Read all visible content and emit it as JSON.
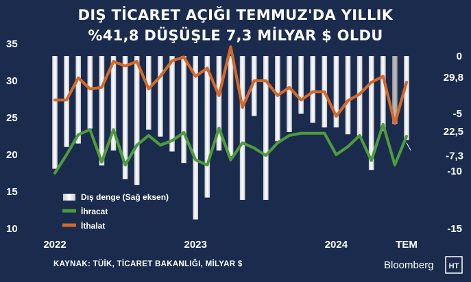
{
  "title_line1": "DIŞ TİCARET AÇIĞI TEMMUZ'DA YILLIK",
  "title_line2": "%41,8 DÜŞÜŞLE 7,3 MİLYAR $ OLDU",
  "source": "KAYNAK: TÜİK, TİCARET BAKANLIĞI, MİLYAR $",
  "brand": "Bloomberg",
  "brand_logo": "HT",
  "colors": {
    "background": "#1a2b4e",
    "bars": "#ffffff",
    "bars_shade": "#c9ccd3",
    "last_year_bar": "#b3b3b3",
    "exports": "#4f9a3e",
    "imports": "#d4692a"
  },
  "chart_data": {
    "type": "bar+line",
    "x": [
      "2022-01",
      "2022-02",
      "2022-03",
      "2022-04",
      "2022-05",
      "2022-06",
      "2022-07",
      "2022-08",
      "2022-09",
      "2022-10",
      "2022-11",
      "2022-12",
      "2023-01",
      "2023-02",
      "2023-03",
      "2023-04",
      "2023-05",
      "2023-06",
      "2023-07",
      "2023-08",
      "2023-09",
      "2023-10",
      "2023-11",
      "2023-12",
      "2024-01",
      "2024-02",
      "2024-03",
      "2024-04",
      "2024-05",
      "2024-06",
      "2024-07"
    ],
    "x_tick_labels": [
      "2022",
      "2023",
      "2024",
      "TEM"
    ],
    "left_axis": {
      "ylim": [
        10,
        35
      ],
      "ticks": [
        10,
        15,
        20,
        25,
        30,
        35
      ]
    },
    "right_axis": {
      "ylim": [
        -15,
        0
      ],
      "ticks": [
        0,
        -5,
        -10,
        -15
      ]
    },
    "series": [
      {
        "name": "Dış denge (Sağ eksen)",
        "chart_type": "bar",
        "axis": "right",
        "values": [
          -9.8,
          -7.9,
          -7.6,
          -6.3,
          -9.5,
          -8.2,
          -10.7,
          -11.2,
          -6.4,
          -7.0,
          -8.3,
          -9.3,
          -14.2,
          -12.3,
          -8.2,
          -8.7,
          -12.5,
          -5.2,
          -12.5,
          -7.4,
          -6.6,
          -5.0,
          -5.8,
          -6.2,
          -6.2,
          -6.8,
          -7.0,
          -9.9,
          -6.5,
          -5.9,
          -7.3
        ]
      },
      {
        "name": "İhracat",
        "chart_type": "line",
        "axis": "left",
        "values": [
          17.5,
          20.0,
          22.7,
          23.4,
          19.0,
          23.4,
          18.6,
          21.3,
          22.6,
          21.3,
          21.9,
          23.0,
          19.3,
          18.6,
          23.6,
          19.3,
          21.6,
          20.9,
          19.9,
          21.6,
          22.6,
          22.9,
          22.9,
          22.9,
          20.0,
          21.1,
          22.6,
          19.2,
          24.1,
          18.6,
          22.5
        ]
      },
      {
        "name": "İthalat",
        "chart_type": "line",
        "axis": "left",
        "values": [
          27.4,
          27.4,
          30.4,
          28.9,
          29.1,
          32.6,
          32.0,
          32.6,
          28.9,
          30.6,
          32.7,
          33.2,
          30.6,
          31.7,
          28.0,
          34.6,
          26.4,
          30.0,
          30.0,
          28.0,
          29.1,
          27.4,
          28.5,
          28.5,
          25.2,
          27.3,
          28.2,
          29.8,
          30.6,
          24.2,
          29.8
        ]
      }
    ],
    "annotations": [
      {
        "text": "29,8",
        "refers_to": "İthalat",
        "x": "2024-07",
        "value": 29.8
      },
      {
        "text": "22,5",
        "refers_to": "İhracat",
        "x": "2024-07",
        "value": 22.5
      },
      {
        "text": "-7,3",
        "refers_to": "Dış denge (Sağ eksen)",
        "x": "2024-07",
        "value": -7.3
      }
    ],
    "legend": {
      "placement": "bottom-left",
      "entries": [
        "Dış denge (Sağ eksen)",
        "İhracat",
        "İthalat"
      ]
    },
    "grid": false
  }
}
